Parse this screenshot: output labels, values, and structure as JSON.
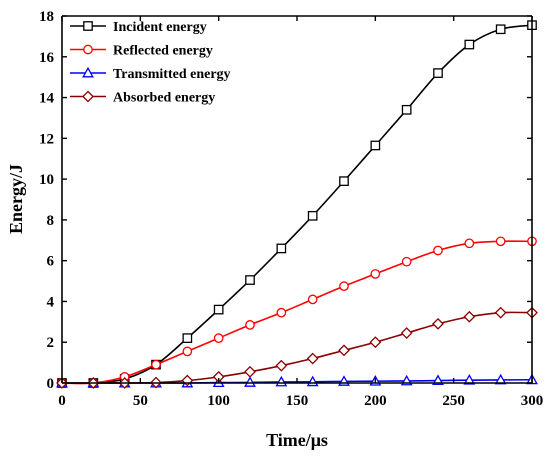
{
  "chart_data": {
    "type": "line",
    "xlabel": "Time/μs",
    "ylabel": "Energy/J",
    "xlim": [
      0,
      300
    ],
    "ylim": [
      0,
      18
    ],
    "xticks": [
      "0",
      "50",
      "100",
      "150",
      "200",
      "250",
      "300"
    ],
    "yticks": [
      "0",
      "2",
      "4",
      "6",
      "8",
      "10",
      "12",
      "14",
      "16",
      "18"
    ],
    "grid": false,
    "legend_position": "top-left",
    "x": [
      0,
      20,
      40,
      60,
      80,
      100,
      120,
      140,
      160,
      180,
      200,
      220,
      240,
      260,
      280,
      300
    ],
    "series": [
      {
        "name": "Incident energy",
        "color": "#000000",
        "marker": "square",
        "values": [
          0,
          0,
          0.2,
          0.9,
          2.2,
          3.6,
          5.05,
          6.6,
          8.2,
          9.9,
          11.65,
          13.4,
          15.2,
          16.6,
          17.35,
          17.55
        ]
      },
      {
        "name": "Reflected energy",
        "color": "#ff0000",
        "marker": "circle",
        "values": [
          0,
          0,
          0.3,
          0.9,
          1.55,
          2.2,
          2.85,
          3.45,
          4.1,
          4.75,
          5.35,
          5.95,
          6.5,
          6.85,
          6.95,
          6.95
        ]
      },
      {
        "name": "Transmitted energy",
        "color": "#0000ff",
        "marker": "triangle",
        "values": [
          0,
          0,
          0,
          0,
          0,
          0.02,
          0.03,
          0.05,
          0.06,
          0.08,
          0.09,
          0.1,
          0.12,
          0.14,
          0.15,
          0.16
        ]
      },
      {
        "name": "Absorbed energy",
        "color": "#8b0000",
        "marker": "diamond",
        "values": [
          0,
          0,
          0,
          0.02,
          0.12,
          0.3,
          0.55,
          0.85,
          1.2,
          1.6,
          2.0,
          2.45,
          2.9,
          3.25,
          3.45,
          3.45
        ]
      }
    ]
  }
}
